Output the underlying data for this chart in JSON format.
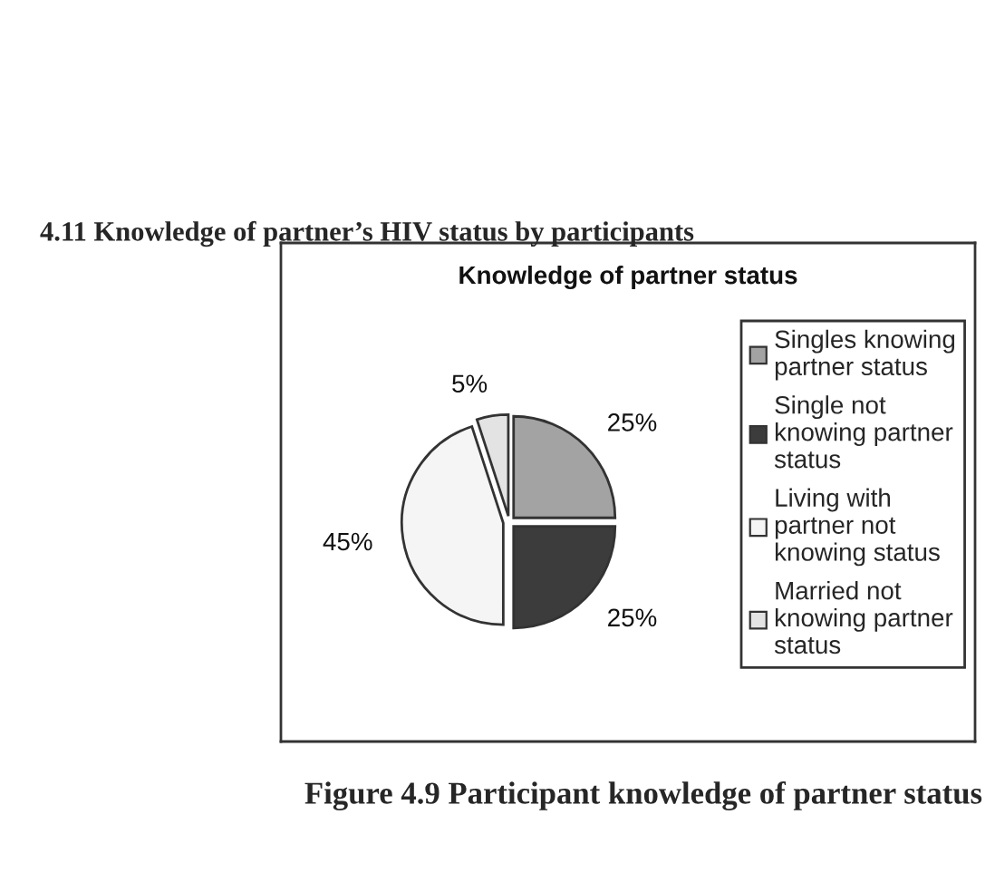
{
  "chart_data": {
    "type": "pie",
    "title": "Knowledge of partner status",
    "categories": [
      "Singles knowing partner status",
      "Single not knowing partner status",
      "Living with partner not knowing status",
      "Married not knowing partner status"
    ],
    "values": [
      25,
      25,
      45,
      5
    ],
    "colors": [
      "#a3a3a3",
      "#3c3c3c",
      "#f5f5f5",
      "#e3e3e3"
    ],
    "value_labels": [
      "25%",
      "25%",
      "45%",
      "5%"
    ],
    "legend": "right",
    "annotations": [
      "4.11 Knowledge of partner’s HIV status by participants",
      "Figure 4.9 Participant knowledge of partner status"
    ]
  }
}
